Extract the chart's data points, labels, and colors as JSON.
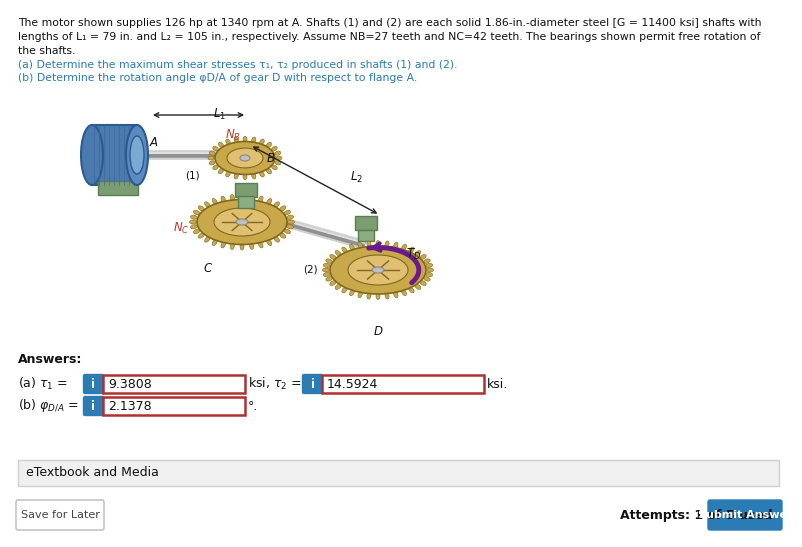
{
  "bg_color": "#ffffff",
  "header_line1": "The motor shown supplies 126 hp at 1340 rpm at A. Shafts (1) and (2) are each solid 1.86-in.-diameter steel [G = 11400 ksi] shafts with",
  "header_line2": "lengths of L₁ = 79 in. and L₂ = 105 in., respectively. Assume NB=27 teeth and NC=42 teeth. The bearings shown permit free rotation of",
  "header_line3": "the shafts.",
  "part_a_text": "(a) Determine the maximum shear stresses τ₁, τ₂ produced in shafts (1) and (2).",
  "part_b_text": "(b) Determine the rotation angle φD/A of gear D with respect to flange A.",
  "answers_label": "Answers:",
  "answer_a1_value": "9.3808",
  "answer_a2_value": "14.5924",
  "answer_b_value": "2.1378",
  "etextbook_text": "eTextbook and Media",
  "save_later_text": "Save for Later",
  "attempts_text": "Attempts: 1 of 5 used",
  "submit_text": "Submit Answer",
  "info_btn_color": "#2b7bb5",
  "input_border_color": "#b03030",
  "submit_btn_color": "#2b7bb5",
  "text_blue": "#2b7bb5",
  "text_red": "#c0392b",
  "text_black": "#111111",
  "etextbook_bg": "#f0f0f0",
  "etextbook_border": "#d0d0d0",
  "save_btn_border": "#bbbbbb",
  "diagram_motor_blue1": "#3a6ea8",
  "diagram_motor_blue2": "#5a8fc8",
  "diagram_motor_gray": "#aaaaaa",
  "diagram_gear_gold1": "#c8a848",
  "diagram_gear_gold2": "#b89838",
  "diagram_gear_gold3": "#e0c070",
  "diagram_gear_dark": "#806820",
  "diagram_shaft_light": "#d0d0d0",
  "diagram_shaft_dark": "#909090",
  "diagram_base_green": "#7a9e72",
  "diagram_base_dark": "#5a7e52",
  "diagram_purple": "#6a1a8a",
  "diagram_arrow_black": "#222222",
  "font_size_header": 7.8,
  "font_size_answers": 9.0,
  "font_size_diagram": 8.5
}
